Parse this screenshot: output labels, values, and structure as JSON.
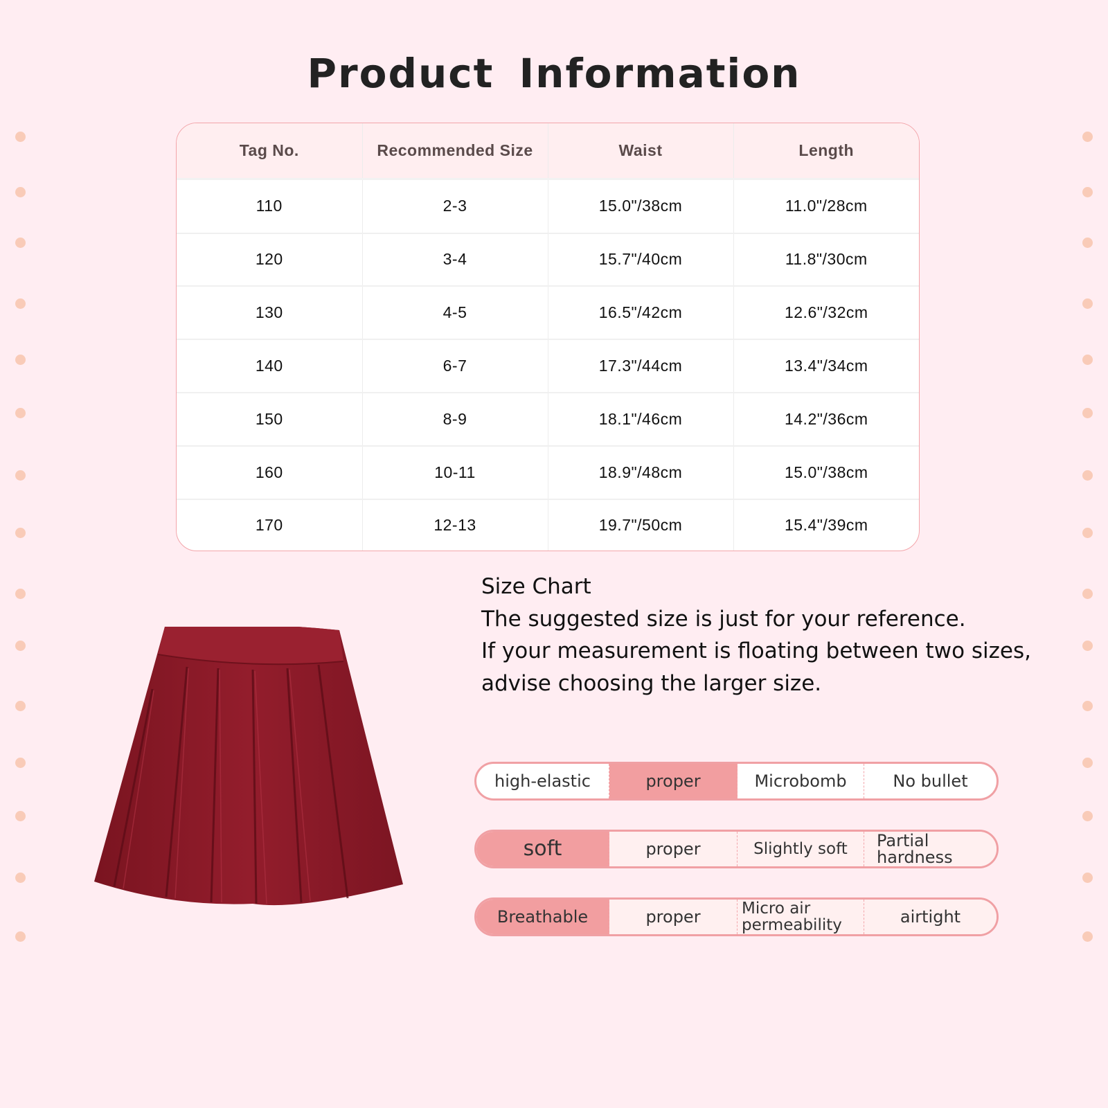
{
  "title": "Product  Information",
  "size_table": {
    "headers": [
      "Tag No.",
      "Recommended Size",
      "Waist",
      "Length"
    ],
    "rows": [
      [
        "110",
        "2-3",
        "15.0\"/38cm",
        "11.0\"/28cm"
      ],
      [
        "120",
        "3-4",
        "15.7\"/40cm",
        "11.8\"/30cm"
      ],
      [
        "130",
        "4-5",
        "16.5\"/42cm",
        "12.6\"/32cm"
      ],
      [
        "140",
        "6-7",
        "17.3\"/44cm",
        "13.4\"/34cm"
      ],
      [
        "150",
        "8-9",
        "18.1\"/46cm",
        "14.2\"/36cm"
      ],
      [
        "160",
        "10-11",
        "18.9\"/48cm",
        "15.0\"/38cm"
      ],
      [
        "170",
        "12-13",
        "19.7\"/50cm",
        "15.4\"/39cm"
      ]
    ]
  },
  "note": {
    "heading": "Size Chart",
    "lines": [
      "The suggested size is just for your reference.",
      "If your measurement is floating between two sizes,",
      "advise choosing the larger size."
    ]
  },
  "features": [
    {
      "options": [
        "high-elastic",
        "proper",
        "Microbomb",
        "No bullet"
      ],
      "selected": "proper"
    },
    {
      "options": [
        "soft",
        "proper",
        "Slightly soft",
        "Partial hardness"
      ],
      "selected": "soft"
    },
    {
      "options": [
        "Breathable",
        "proper",
        "Micro air permeability",
        "airtight"
      ],
      "selected": "Breathable"
    }
  ],
  "colors": {
    "background": "#ffedf2",
    "accent": "#f29ea0",
    "border": "#f0a0a4",
    "skirt": "#8f1c2a",
    "dots": "#f9cbb8"
  }
}
